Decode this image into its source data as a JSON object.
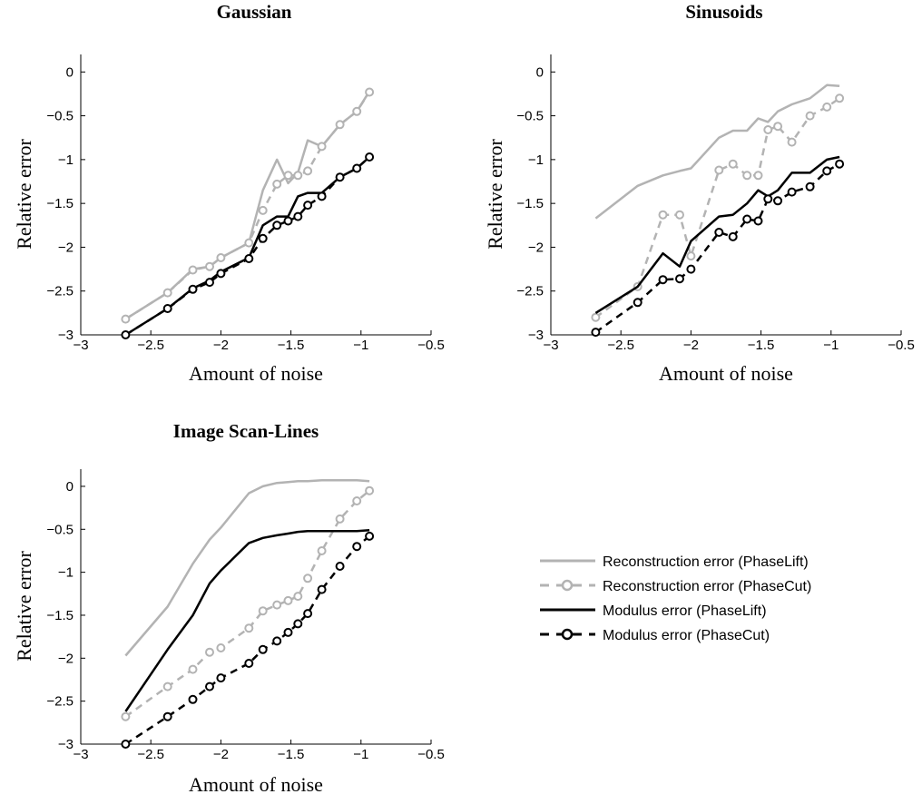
{
  "chart_data": [
    {
      "type": "line",
      "title": "Gaussian",
      "xlabel": "Amount of noise",
      "ylabel": "Relative error",
      "xlim": [
        -3,
        -0.5
      ],
      "ylim": [
        -3,
        0.2
      ],
      "xticks": [
        "−3",
        "−2.5",
        "−2",
        "−1.5",
        "−1",
        "−0.5"
      ],
      "yticks": [
        "−3",
        "−2.5",
        "−2",
        "−1.5",
        "−1",
        "−0.5",
        "0"
      ],
      "series": [
        {
          "name": "Reconstruction error (PhaseLift)",
          "color": "#b3b3b3",
          "style": "solid",
          "marker": "none",
          "x": [
            -2.68,
            -2.38,
            -2.2,
            -2.08,
            -2.0,
            -1.8,
            -1.7,
            -1.6,
            -1.52,
            -1.45,
            -1.38,
            -1.28,
            -1.15,
            -1.03,
            -0.94
          ],
          "y": [
            -2.82,
            -2.52,
            -2.25,
            -2.22,
            -2.12,
            -1.95,
            -1.35,
            -1.0,
            -1.27,
            -1.15,
            -0.78,
            -0.85,
            -0.6,
            -0.45,
            -0.22
          ]
        },
        {
          "name": "Reconstruction error (PhaseCut)",
          "color": "#b3b3b3",
          "style": "dashed",
          "marker": "circle",
          "x": [
            -2.68,
            -2.38,
            -2.2,
            -2.08,
            -2.0,
            -1.8,
            -1.7,
            -1.6,
            -1.52,
            -1.45,
            -1.38,
            -1.28,
            -1.15,
            -1.03,
            -0.94
          ],
          "y": [
            -2.82,
            -2.52,
            -2.26,
            -2.22,
            -2.12,
            -1.95,
            -1.58,
            -1.28,
            -1.18,
            -1.18,
            -1.13,
            -0.85,
            -0.6,
            -0.45,
            -0.23
          ]
        },
        {
          "name": "Modulus error (PhaseLift)",
          "color": "#000000",
          "style": "solid",
          "marker": "none",
          "x": [
            -2.68,
            -2.38,
            -2.2,
            -2.08,
            -2.0,
            -1.8,
            -1.7,
            -1.6,
            -1.52,
            -1.45,
            -1.38,
            -1.28,
            -1.15,
            -1.03,
            -0.94
          ],
          "y": [
            -3.0,
            -2.7,
            -2.47,
            -2.38,
            -2.28,
            -2.12,
            -1.75,
            -1.65,
            -1.65,
            -1.42,
            -1.38,
            -1.38,
            -1.2,
            -1.1,
            -0.97
          ]
        },
        {
          "name": "Modulus error (PhaseCut)",
          "color": "#000000",
          "style": "dashed",
          "marker": "circle",
          "x": [
            -2.68,
            -2.38,
            -2.2,
            -2.08,
            -2.0,
            -1.8,
            -1.7,
            -1.6,
            -1.52,
            -1.45,
            -1.38,
            -1.28,
            -1.15,
            -1.03,
            -0.94
          ],
          "y": [
            -3.0,
            -2.7,
            -2.48,
            -2.4,
            -2.3,
            -2.13,
            -1.9,
            -1.75,
            -1.7,
            -1.65,
            -1.52,
            -1.42,
            -1.2,
            -1.1,
            -0.97
          ]
        }
      ]
    },
    {
      "type": "line",
      "title": "Sinusoids",
      "xlabel": "Amount of noise",
      "ylabel": "Relative error",
      "xlim": [
        -3,
        -0.5
      ],
      "ylim": [
        -3,
        0.2
      ],
      "xticks": [
        "−3",
        "−2.5",
        "−2",
        "−1.5",
        "−1",
        "−0.5"
      ],
      "yticks": [
        "−3",
        "−2.5",
        "−2",
        "−1.5",
        "−1",
        "−0.5",
        "0"
      ],
      "series": [
        {
          "name": "Reconstruction error (PhaseLift)",
          "color": "#b3b3b3",
          "style": "solid",
          "marker": "none",
          "x": [
            -2.68,
            -2.38,
            -2.2,
            -2.08,
            -2.0,
            -1.8,
            -1.7,
            -1.6,
            -1.52,
            -1.45,
            -1.38,
            -1.28,
            -1.15,
            -1.03,
            -0.94
          ],
          "y": [
            -1.67,
            -1.3,
            -1.18,
            -1.13,
            -1.1,
            -0.75,
            -0.67,
            -0.67,
            -0.53,
            -0.57,
            -0.45,
            -0.37,
            -0.3,
            -0.15,
            -0.16
          ]
        },
        {
          "name": "Reconstruction error (PhaseCut)",
          "color": "#b3b3b3",
          "style": "dashed",
          "marker": "circle",
          "x": [
            -2.68,
            -2.38,
            -2.2,
            -2.08,
            -2.0,
            -1.8,
            -1.7,
            -1.6,
            -1.52,
            -1.45,
            -1.38,
            -1.28,
            -1.15,
            -1.03,
            -0.94
          ],
          "y": [
            -2.8,
            -2.45,
            -1.63,
            -1.63,
            -2.1,
            -1.12,
            -1.05,
            -1.18,
            -1.18,
            -0.66,
            -0.62,
            -0.8,
            -0.5,
            -0.4,
            -0.3
          ]
        },
        {
          "name": "Modulus error (PhaseLift)",
          "color": "#000000",
          "style": "solid",
          "marker": "none",
          "x": [
            -2.68,
            -2.38,
            -2.2,
            -2.08,
            -2.0,
            -1.8,
            -1.7,
            -1.6,
            -1.52,
            -1.45,
            -1.38,
            -1.28,
            -1.15,
            -1.03,
            -0.94
          ],
          "y": [
            -2.75,
            -2.45,
            -2.07,
            -2.22,
            -1.93,
            -1.65,
            -1.63,
            -1.5,
            -1.35,
            -1.42,
            -1.35,
            -1.15,
            -1.15,
            -1.0,
            -0.97
          ]
        },
        {
          "name": "Modulus error (PhaseCut)",
          "color": "#000000",
          "style": "dashed",
          "marker": "circle",
          "x": [
            -2.68,
            -2.38,
            -2.2,
            -2.08,
            -2.0,
            -1.8,
            -1.7,
            -1.6,
            -1.52,
            -1.45,
            -1.38,
            -1.28,
            -1.15,
            -1.03,
            -0.94
          ],
          "y": [
            -2.97,
            -2.63,
            -2.37,
            -2.36,
            -2.25,
            -1.83,
            -1.88,
            -1.68,
            -1.7,
            -1.45,
            -1.47,
            -1.37,
            -1.31,
            -1.13,
            -1.05
          ]
        }
      ]
    },
    {
      "type": "line",
      "title": "Image Scan-Lines",
      "xlabel": "Amount of noise",
      "ylabel": "Relative error",
      "xlim": [
        -3,
        -0.5
      ],
      "ylim": [
        -3,
        0.2
      ],
      "xticks": [
        "−3",
        "−2.5",
        "−2",
        "−1.5",
        "−1",
        "−0.5"
      ],
      "yticks": [
        "−3",
        "−2.5",
        "−2",
        "−1.5",
        "−1",
        "−0.5",
        "0"
      ],
      "series": [
        {
          "name": "Reconstruction error (PhaseLift)",
          "color": "#b3b3b3",
          "style": "solid",
          "marker": "none",
          "x": [
            -2.68,
            -2.38,
            -2.2,
            -2.08,
            -2.0,
            -1.8,
            -1.7,
            -1.6,
            -1.52,
            -1.45,
            -1.38,
            -1.28,
            -1.15,
            -1.03,
            -0.94
          ],
          "y": [
            -1.97,
            -1.4,
            -0.9,
            -0.62,
            -0.48,
            -0.08,
            0.0,
            0.04,
            0.05,
            0.06,
            0.06,
            0.07,
            0.07,
            0.07,
            0.06
          ]
        },
        {
          "name": "Reconstruction error (PhaseCut)",
          "color": "#b3b3b3",
          "style": "dashed",
          "marker": "circle",
          "x": [
            -2.68,
            -2.38,
            -2.2,
            -2.08,
            -2.0,
            -1.8,
            -1.7,
            -1.6,
            -1.52,
            -1.45,
            -1.38,
            -1.28,
            -1.15,
            -1.03,
            -0.94
          ],
          "y": [
            -2.68,
            -2.33,
            -2.13,
            -1.93,
            -1.88,
            -1.65,
            -1.45,
            -1.38,
            -1.33,
            -1.28,
            -1.07,
            -0.75,
            -0.38,
            -0.17,
            -0.05
          ]
        },
        {
          "name": "Modulus error (PhaseLift)",
          "color": "#000000",
          "style": "solid",
          "marker": "none",
          "x": [
            -2.68,
            -2.38,
            -2.2,
            -2.08,
            -2.0,
            -1.8,
            -1.7,
            -1.6,
            -1.52,
            -1.45,
            -1.38,
            -1.28,
            -1.15,
            -1.03,
            -0.94
          ],
          "y": [
            -2.62,
            -1.9,
            -1.5,
            -1.13,
            -0.98,
            -0.66,
            -0.6,
            -0.57,
            -0.55,
            -0.53,
            -0.52,
            -0.52,
            -0.52,
            -0.52,
            -0.51
          ]
        },
        {
          "name": "Modulus error (PhaseCut)",
          "color": "#000000",
          "style": "dashed",
          "marker": "circle",
          "x": [
            -2.68,
            -2.38,
            -2.2,
            -2.08,
            -2.0,
            -1.8,
            -1.7,
            -1.6,
            -1.52,
            -1.45,
            -1.38,
            -1.28,
            -1.15,
            -1.03,
            -0.94
          ],
          "y": [
            -3.0,
            -2.68,
            -2.48,
            -2.33,
            -2.23,
            -2.06,
            -1.9,
            -1.8,
            -1.7,
            -1.6,
            -1.48,
            -1.2,
            -0.93,
            -0.7,
            -0.58
          ]
        }
      ]
    }
  ],
  "legend": {
    "placement": "bottom-right",
    "entries": [
      "Reconstruction error (PhaseLift)",
      "Reconstruction error (PhaseCut)",
      "Modulus error (PhaseLift)",
      "Modulus error (PhaseCut)"
    ]
  }
}
